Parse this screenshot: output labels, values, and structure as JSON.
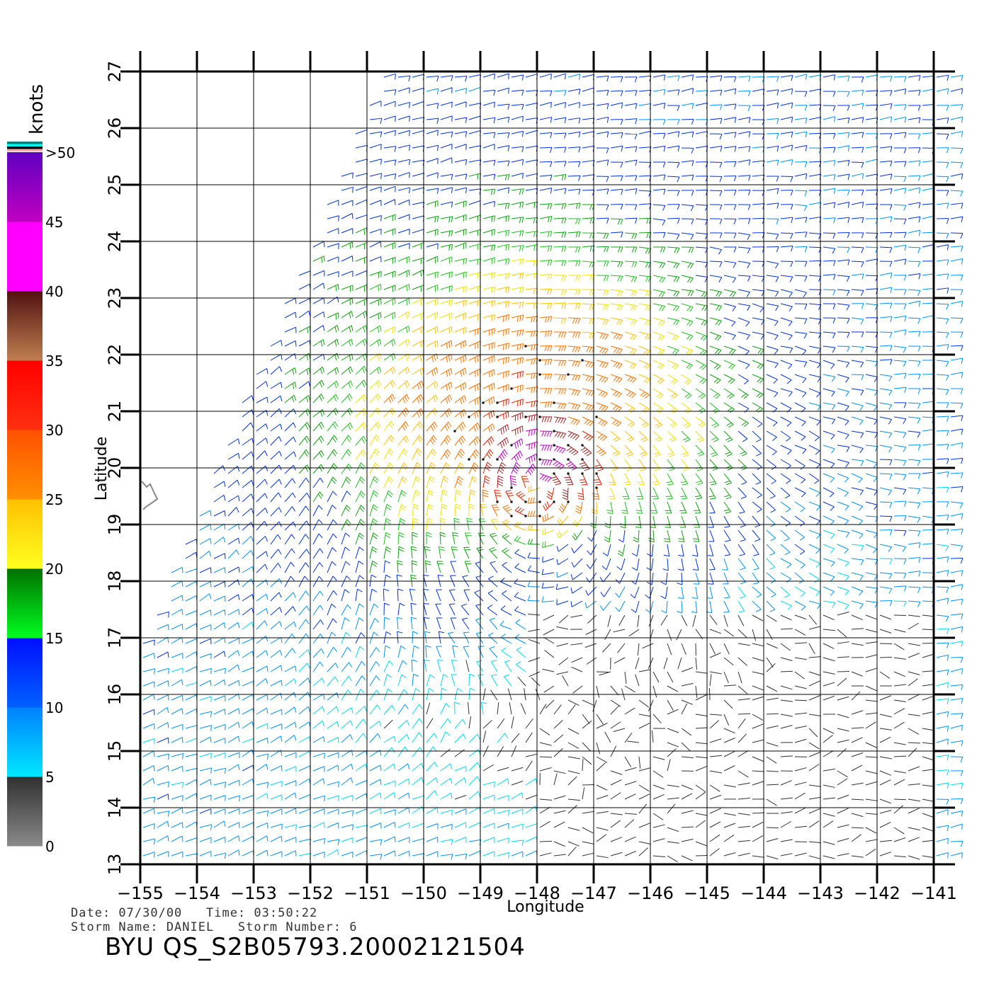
{
  "colorbar": {
    "unit": "knots",
    "labels": [
      ">50",
      "45",
      "40",
      "35",
      "30",
      "25",
      "20",
      "15",
      "10",
      "5",
      "0"
    ],
    "segments": [
      {
        "from": 0,
        "to": 5,
        "top": "#303030",
        "bottom": "#8a8a8a"
      },
      {
        "from": 5,
        "to": 10,
        "top": "#0080ff",
        "bottom": "#00e8ff"
      },
      {
        "from": 10,
        "to": 15,
        "top": "#0010ff",
        "bottom": "#0060ff"
      },
      {
        "from": 15,
        "to": 20,
        "top": "#007000",
        "bottom": "#00ff20"
      },
      {
        "from": 20,
        "to": 25,
        "top": "#ffc000",
        "bottom": "#ffff20"
      },
      {
        "from": 25,
        "to": 30,
        "top": "#ff5000",
        "bottom": "#ff9000"
      },
      {
        "from": 30,
        "to": 35,
        "top": "#ff0000",
        "bottom": "#ff3010"
      },
      {
        "from": 35,
        "to": 40,
        "top": "#501010",
        "bottom": "#c08050"
      },
      {
        "from": 40,
        "to": 45,
        "top": "#ff00ff",
        "bottom": "#ff00ff"
      },
      {
        "from": 45,
        "to": 50,
        "top": "#6000c0",
        "bottom": "#c000c0"
      }
    ],
    "top_stripes": [
      "#008080",
      "#00ffff",
      "#000000",
      "#ffaaaa"
    ]
  },
  "map": {
    "lon_ticks": [
      "−155",
      "−154",
      "−153",
      "−152",
      "−151",
      "−150",
      "−149",
      "−148",
      "−147",
      "−146",
      "−145",
      "−144",
      "−143",
      "−142",
      "−141"
    ],
    "lat_ticks": [
      "13",
      "14",
      "15",
      "16",
      "17",
      "18",
      "19",
      "20",
      "21",
      "22",
      "23",
      "24",
      "25",
      "26",
      "27"
    ],
    "lon_range": [
      -155,
      -141
    ],
    "lat_range": [
      13,
      27
    ],
    "xlabel": "Longitude",
    "ylabel": "Latitude",
    "storm_center": {
      "lon": -148.0,
      "lat": 19.8
    }
  },
  "meta": {
    "line1": "Date: 07/30/00   Time: 03:50:22",
    "line2": "Storm Name: DANIEL   Storm Number: 6"
  },
  "title": "BYU QS_S2B05793.20002121504"
}
